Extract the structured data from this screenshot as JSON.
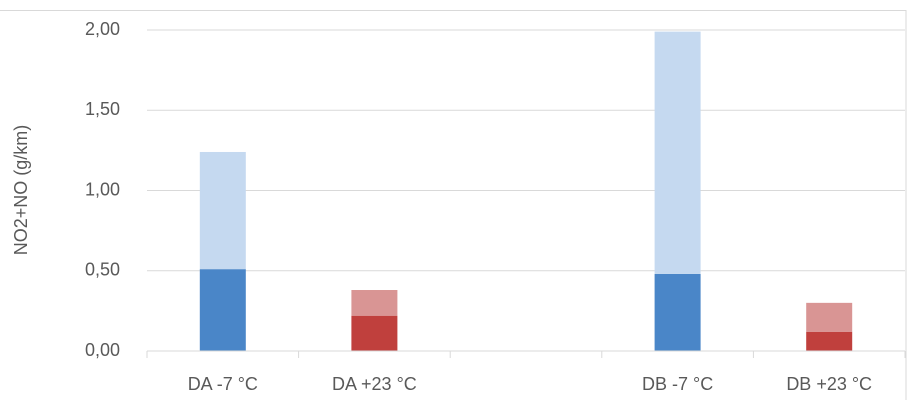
{
  "chart_data": {
    "type": "stacked_bar",
    "y_label": "NO2+NO (g/km)",
    "categories": [
      "DA -7 °C",
      "DA +23 °C",
      null,
      "DB -7 °C",
      "DB +23 °C"
    ],
    "series": [
      {
        "colors": [
          "#4a86c8",
          "#c0403d",
          null,
          "#4a86c8",
          "#c0403d"
        ],
        "values": [
          0.51,
          0.22,
          null,
          0.48,
          0.12
        ]
      },
      {
        "colors": [
          "#c5d9f0",
          "#d99594",
          null,
          "#c5d9f0",
          "#d99594"
        ],
        "values": [
          0.73,
          0.16,
          null,
          1.51,
          0.18
        ]
      }
    ],
    "ylim": [
      0,
      2
    ],
    "yticks": [
      {
        "value": 0,
        "label": "0,00"
      },
      {
        "value": 0.5,
        "label": "0,50"
      },
      {
        "value": 1,
        "label": "1,00"
      },
      {
        "value": 1.5,
        "label": "1,50"
      },
      {
        "value": 2,
        "label": "2,00"
      }
    ],
    "grid": true
  }
}
